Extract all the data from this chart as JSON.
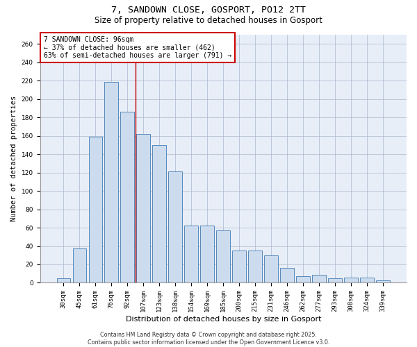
{
  "title1": "7, SANDOWN CLOSE, GOSPORT, PO12 2TT",
  "title2": "Size of property relative to detached houses in Gosport",
  "xlabel": "Distribution of detached houses by size in Gosport",
  "ylabel": "Number of detached properties",
  "categories": [
    "30sqm",
    "45sqm",
    "61sqm",
    "76sqm",
    "92sqm",
    "107sqm",
    "123sqm",
    "138sqm",
    "154sqm",
    "169sqm",
    "185sqm",
    "200sqm",
    "215sqm",
    "231sqm",
    "246sqm",
    "262sqm",
    "277sqm",
    "293sqm",
    "308sqm",
    "324sqm",
    "339sqm"
  ],
  "values": [
    5,
    37,
    159,
    219,
    186,
    162,
    150,
    121,
    62,
    62,
    57,
    35,
    35,
    30,
    16,
    7,
    9,
    5,
    6,
    6,
    3
  ],
  "bar_color": "#ccdcee",
  "bar_edge_color": "#5588bb",
  "vline_x": 4.5,
  "vline_color": "#bb0000",
  "annotation_text": "7 SANDOWN CLOSE: 96sqm\n← 37% of detached houses are smaller (462)\n63% of semi-detached houses are larger (791) →",
  "annotation_fontsize": 7.0,
  "annotation_box_color": "#cc0000",
  "footer": "Contains HM Land Registry data © Crown copyright and database right 2025.\nContains public sector information licensed under the Open Government Licence v3.0.",
  "ylim": [
    0,
    270
  ],
  "yticks": [
    0,
    20,
    40,
    60,
    80,
    100,
    120,
    140,
    160,
    180,
    200,
    220,
    240,
    260
  ],
  "background_color": "#e8eef8",
  "title_fontsize": 9.5,
  "subtitle_fontsize": 8.5,
  "xlabel_fontsize": 8.0,
  "ylabel_fontsize": 7.5,
  "tick_fontsize": 6.5,
  "footer_fontsize": 5.8
}
